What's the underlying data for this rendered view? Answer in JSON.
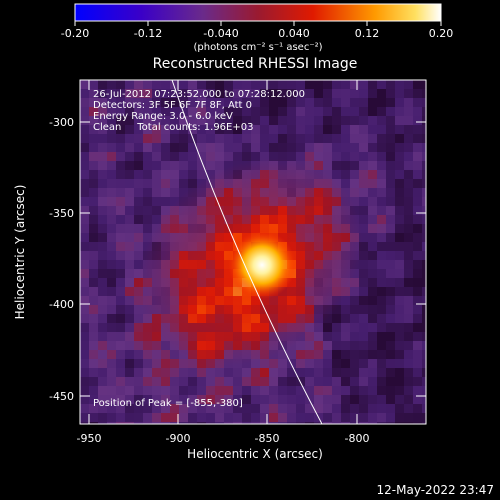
{
  "colorbar": {
    "ticks": [
      "-0.20",
      "-0.12",
      "-0.040",
      "0.040",
      "0.12",
      "0.20"
    ],
    "units": "(photons cm⁻² s⁻¹ asec⁻²)"
  },
  "image": {
    "title": "Reconstructed RHESSI Image",
    "info_lines": [
      "26-Jul-2012 07:23:52.000 to 07:28:12.000",
      "Detectors: 3F 5F 6F 7F 8F, Att 0",
      "Energy Range: 3.0 - 6.0 keV",
      "Clean     Total counts: 1.96E+03"
    ],
    "peak_label": "Position of Peak = [-855,-380]",
    "xlabel": "Heliocentric X (arcsec)",
    "ylabel": "Heliocentric Y (arcsec)",
    "xticks": [
      "-950",
      "-900",
      "-850",
      "-800"
    ],
    "yticks": [
      "-300",
      "-350",
      "-400",
      "-450"
    ],
    "colors": {
      "low": "#0000ff",
      "mid": "#ff0000",
      "high": "#ffffff",
      "background": "#000000"
    }
  },
  "footer": {
    "timestamp": "12-May-2022 23:47"
  }
}
